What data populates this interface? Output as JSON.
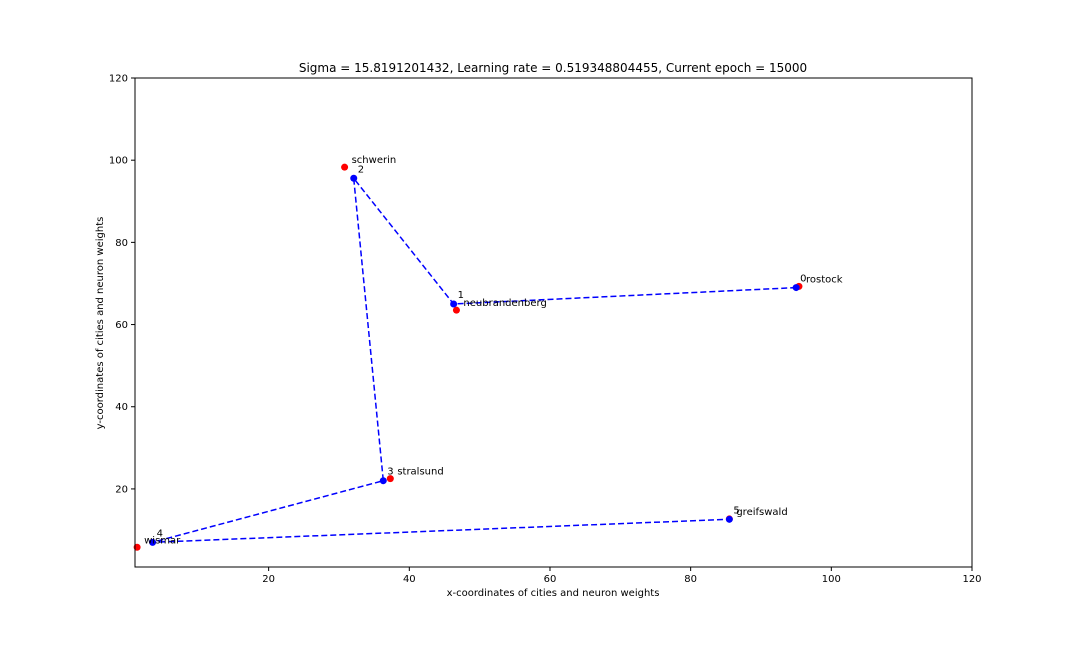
{
  "chart_data": {
    "type": "scatter",
    "title": "Sigma = 15.8191201432, Learning rate = 0.519348804455, Current epoch = 15000",
    "xlabel": "x-coordinates of cities and neuron weights",
    "ylabel": "y-coordinates of cities and neuron weights",
    "xlim": [
      1,
      120
    ],
    "ylim": [
      1,
      120
    ],
    "xticks": [
      20,
      40,
      60,
      80,
      100,
      120
    ],
    "yticks": [
      20,
      40,
      60,
      80,
      100,
      120
    ],
    "grid": false,
    "legend": "none",
    "colors": {
      "cities": "#ff0000",
      "neurons": "#0000ff",
      "path": "#0000ff"
    },
    "cities": [
      {
        "label": "rostock",
        "x": 95.4,
        "y": 69.3
      },
      {
        "label": "neubrandenberg",
        "x": 46.7,
        "y": 63.5
      },
      {
        "label": "schwerin",
        "x": 30.8,
        "y": 98.3
      },
      {
        "label": "stralsund",
        "x": 37.3,
        "y": 22.5
      },
      {
        "label": "wismar",
        "x": 1.3,
        "y": 5.8
      },
      {
        "label": "greifswald",
        "x": 85.5,
        "y": 12.7
      }
    ],
    "neurons": [
      {
        "label": "0",
        "x": 95.0,
        "y": 69.0
      },
      {
        "label": "1",
        "x": 46.3,
        "y": 65.0
      },
      {
        "label": "2",
        "x": 32.1,
        "y": 95.6
      },
      {
        "label": "3",
        "x": 36.3,
        "y": 22.0
      },
      {
        "label": "4",
        "x": 3.5,
        "y": 7.0
      },
      {
        "label": "5",
        "x": 85.5,
        "y": 12.6
      }
    ],
    "path_order": [
      0,
      1,
      2,
      3,
      4,
      5
    ]
  }
}
